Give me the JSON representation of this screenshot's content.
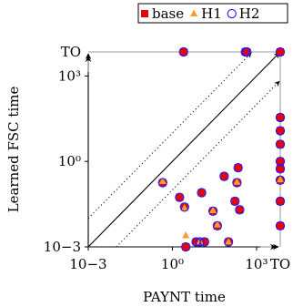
{
  "chart_data": {
    "type": "scatter",
    "title": "",
    "xlabel": "PAYNT time",
    "ylabel": "Learned FSC time",
    "x_scale": "log",
    "y_scale": "log",
    "xlim": [
      0.001,
      7000
    ],
    "ylim": [
      0.001,
      7000
    ],
    "timeout_label": "TO",
    "timeout_value": 7000,
    "x_ticks": [
      {
        "value": 0.001,
        "label": "10−3"
      },
      {
        "value": 1,
        "label": "10⁰"
      },
      {
        "value": 1000,
        "label": "10³"
      }
    ],
    "y_ticks": [
      {
        "value": 0.001,
        "label": "10−3"
      },
      {
        "value": 1,
        "label": "10⁰"
      },
      {
        "value": 1000,
        "label": "10³"
      }
    ],
    "grid": false,
    "legend_position": "top-right",
    "diagonals": {
      "solid_factor": 1,
      "dotted_factors": [
        10,
        0.1
      ]
    },
    "series": [
      {
        "name": "base",
        "marker": "square",
        "color": "#e8000b",
        "points": [
          [
            2.5,
            7000
          ],
          [
            0.45,
            0.18
          ],
          [
            1.8,
            0.055
          ],
          [
            2.7,
            0.025
          ],
          [
            3.0,
            0.001
          ],
          [
            7.0,
            0.0015
          ],
          [
            9.5,
            0.0015
          ],
          [
            11,
            0.08
          ],
          [
            14,
            0.0015
          ],
          [
            28,
            0.018
          ],
          [
            40,
            0.0055
          ],
          [
            70,
            0.3
          ],
          [
            100,
            0.0015
          ],
          [
            170,
            0.04
          ],
          [
            200,
            0.18
          ],
          [
            220,
            0.6
          ],
          [
            250,
            0.02
          ],
          [
            400,
            7000
          ],
          [
            450,
            7000
          ],
          [
            7000,
            7000
          ],
          [
            7000,
            0.22
          ],
          [
            7000,
            0.55
          ],
          [
            7000,
            1.0
          ],
          [
            7000,
            4.0
          ],
          [
            7000,
            12
          ],
          [
            7000,
            35
          ],
          [
            7000,
            0.04
          ],
          [
            7000,
            0.0055
          ]
        ]
      },
      {
        "name": "H1",
        "marker": "triangle",
        "color": "#f2a030",
        "points": [
          [
            0.45,
            0.2
          ],
          [
            2.7,
            0.023
          ],
          [
            3.0,
            0.0025
          ],
          [
            9.5,
            0.0015
          ],
          [
            28,
            0.019
          ],
          [
            40,
            0.006
          ],
          [
            100,
            0.0015
          ],
          [
            200,
            0.19
          ],
          [
            7000,
            0.23
          ]
        ]
      },
      {
        "name": "H2",
        "marker": "circle",
        "color": "#1a1aff",
        "points": [
          [
            2.5,
            7000
          ],
          [
            0.45,
            0.18
          ],
          [
            1.8,
            0.055
          ],
          [
            2.7,
            0.025
          ],
          [
            3.0,
            0.001
          ],
          [
            7.0,
            0.0015
          ],
          [
            9.5,
            0.0015
          ],
          [
            11,
            0.08
          ],
          [
            14,
            0.0015
          ],
          [
            28,
            0.018
          ],
          [
            40,
            0.0055
          ],
          [
            70,
            0.3
          ],
          [
            100,
            0.0015
          ],
          [
            170,
            0.04
          ],
          [
            200,
            0.18
          ],
          [
            220,
            0.6
          ],
          [
            250,
            0.02
          ],
          [
            400,
            7000
          ],
          [
            450,
            7000
          ],
          [
            7000,
            7000
          ],
          [
            7000,
            0.22
          ],
          [
            7000,
            0.55
          ],
          [
            7000,
            1.0
          ],
          [
            7000,
            4.0
          ],
          [
            7000,
            12
          ],
          [
            7000,
            35
          ],
          [
            7000,
            0.04
          ],
          [
            7000,
            0.0055
          ]
        ]
      }
    ]
  }
}
